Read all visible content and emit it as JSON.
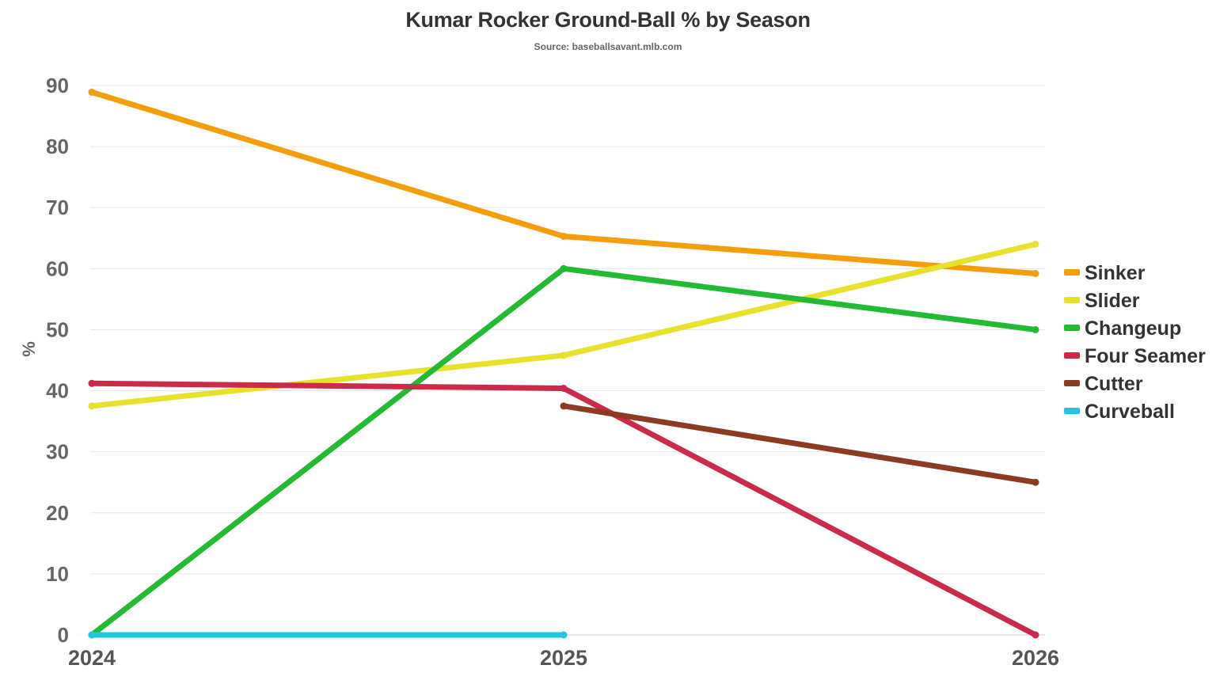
{
  "chart_data": {
    "type": "line",
    "title": "Kumar Rocker Ground-Ball % by Season",
    "subtitle": "Source: baseballsavant.mlb.com",
    "xlabel": "",
    "ylabel": "%",
    "x": [
      "2024",
      "2025",
      "2026"
    ],
    "ylim": [
      0,
      90
    ],
    "yticks": [
      0,
      10,
      20,
      30,
      40,
      50,
      60,
      70,
      80,
      90
    ],
    "grid": true,
    "legend_position": "right",
    "series": [
      {
        "name": "Sinker",
        "color": "#f59e0b",
        "values": [
          88.9,
          65.3,
          59.2
        ]
      },
      {
        "name": "Slider",
        "color": "#e6e12a",
        "values": [
          37.5,
          45.8,
          64.0
        ]
      },
      {
        "name": "Changeup",
        "color": "#22bb33",
        "values": [
          0.0,
          60.0,
          50.0
        ]
      },
      {
        "name": "Four Seamer",
        "color": "#cc2a4a",
        "values": [
          41.2,
          40.4,
          0.0
        ]
      },
      {
        "name": "Cutter",
        "color": "#8b3a24",
        "values": [
          null,
          37.5,
          25.0
        ]
      },
      {
        "name": "Curveball",
        "color": "#1ec8e0",
        "values": [
          0.0,
          0.0,
          null
        ]
      }
    ]
  }
}
